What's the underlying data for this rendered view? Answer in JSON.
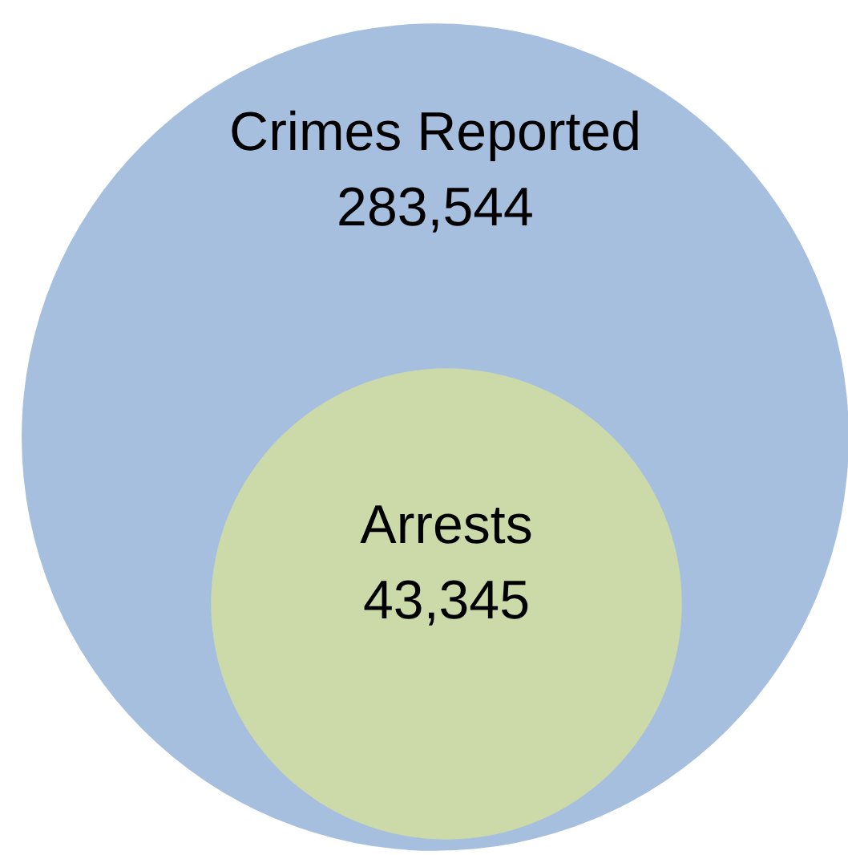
{
  "chart_data": {
    "type": "other",
    "categories": [
      "Crimes Reported",
      "Arrests"
    ],
    "values": [
      283544,
      43345
    ],
    "value_labels": [
      "283,544",
      "43,345"
    ],
    "colors": [
      "#a6bfdf",
      "#ccdaaa"
    ]
  }
}
